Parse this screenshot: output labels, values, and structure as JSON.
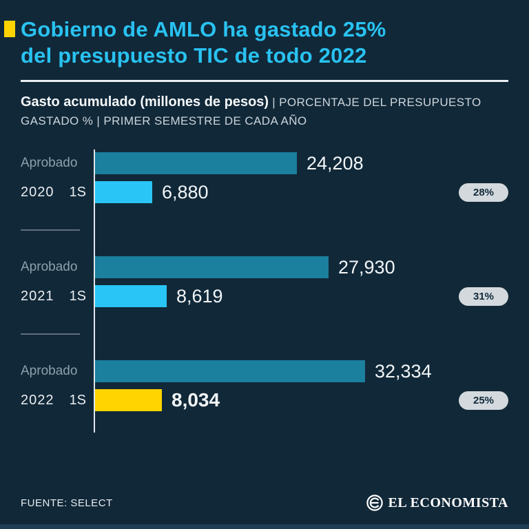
{
  "colors": {
    "background": "#112838",
    "title_accent": "#29c2f1",
    "marker_yellow": "#ffd400",
    "approved_bar": "#1b7f9e",
    "semester_bar": "#29c5f6",
    "highlight_bar": "#ffd400",
    "badge_bg": "#d3d9dd"
  },
  "header": {
    "title_line1": "Gobierno de AMLO ha gastado 25%",
    "title_line2": "del presupuesto TIC de todo 2022",
    "subtitle_bold": "Gasto acumulado (millones de pesos)",
    "subtitle_rest": " | PORCENTAJE DEL PRESUPUESTO GASTADO % | PRIMER SEMESTRE DE CADA AÑO"
  },
  "chart_data": {
    "type": "bar",
    "orientation": "horizontal",
    "title": "Gobierno de AMLO ha gastado 25% del presupuesto TIC de todo 2022",
    "subtitle": "Gasto acumulado (millones de pesos) | Porcentaje del presupuesto gastado % | Primer semestre de cada año",
    "categories": [
      "2020",
      "2021",
      "2022"
    ],
    "series": [
      {
        "name": "Aprobado",
        "values": [
          24208,
          27930,
          32334
        ]
      },
      {
        "name": "1S",
        "values": [
          6880,
          8619,
          8034
        ]
      }
    ],
    "annotations": [
      "28%",
      "31%",
      "25%"
    ],
    "xlim": [
      0,
      33000
    ],
    "grid": false,
    "legend_position": "none",
    "groups": [
      {
        "year": "2020",
        "approved_label": "Aprobado",
        "semester_label": "1S",
        "approved_value": 24208,
        "approved_display": "24,208",
        "semester_value": 6880,
        "semester_display": "6,880",
        "percent": "28%",
        "highlight": false
      },
      {
        "year": "2021",
        "approved_label": "Aprobado",
        "semester_label": "1S",
        "approved_value": 27930,
        "approved_display": "27,930",
        "semester_value": 8619,
        "semester_display": "8,619",
        "percent": "31%",
        "highlight": false
      },
      {
        "year": "2022",
        "approved_label": "Aprobado",
        "semester_label": "1S",
        "approved_value": 32334,
        "approved_display": "32,334",
        "semester_value": 8034,
        "semester_display": "8,034",
        "percent": "25%",
        "highlight": true
      }
    ]
  },
  "footer": {
    "source": "FUENTE: SELECT",
    "brand": "EL ECONOMISTA"
  }
}
